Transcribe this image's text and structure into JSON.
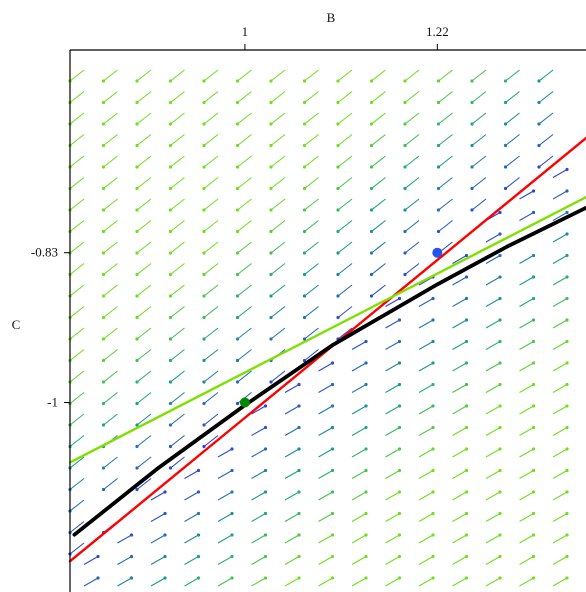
{
  "chart_data": {
    "type": "line",
    "title": "",
    "xlabel": "B",
    "ylabel": "C",
    "xlim": [
      0.8,
      1.39
    ],
    "ylim": [
      -1.215,
      -0.6
    ],
    "x_ticks": [
      {
        "value": 1,
        "label": "1"
      },
      {
        "value": 1.22,
        "label": "1.22"
      }
    ],
    "y_ticks": [
      {
        "value": -0.83,
        "label": "-0.83"
      },
      {
        "value": -1,
        "label": "-1"
      }
    ],
    "grid": false,
    "legend": "none",
    "vector_field": {
      "description_free": true,
      "colors": {
        "low": "#2f3ee0",
        "mid": "#1aa08a",
        "high": "#6fe020"
      }
    },
    "series": [
      {
        "color": "#ff0000",
        "x": [
          0.8,
          1.39
        ],
        "y": [
          -1.18,
          -0.7
        ],
        "style": "line"
      },
      {
        "color": "#7fe000",
        "x": [
          0.8,
          1.39
        ],
        "y": [
          -1.068,
          -0.767
        ],
        "style": "line"
      },
      {
        "color": "#000000",
        "x": [
          0.805,
          0.9,
          1.0,
          1.1,
          1.22,
          1.3,
          1.39
        ],
        "y": [
          -1.15,
          -1.075,
          -1.003,
          -0.935,
          -0.866,
          -0.823,
          -0.779
        ],
        "style": "curve"
      }
    ],
    "points": [
      {
        "x": 1.0,
        "y": -1.0,
        "color": "#008800"
      },
      {
        "x": 1.22,
        "y": -0.83,
        "color": "#2255ee"
      }
    ]
  }
}
